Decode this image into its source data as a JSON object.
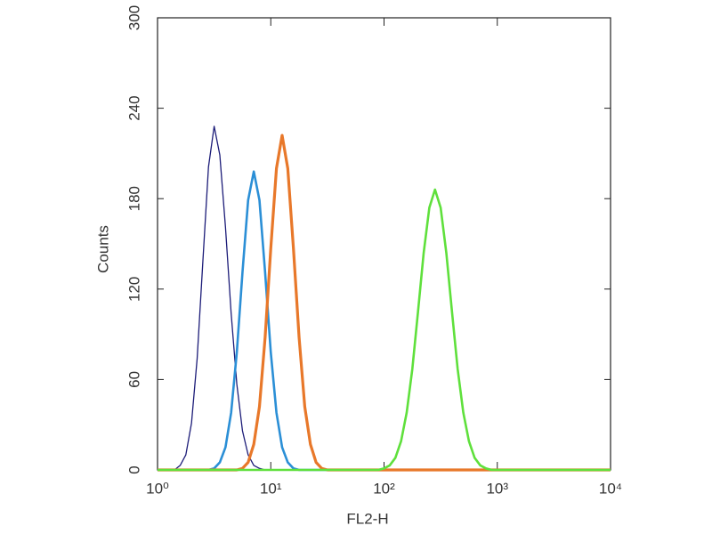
{
  "chart_data": {
    "type": "line",
    "x_label": "FL2-H",
    "y_label": "Counts",
    "xscale": "log",
    "xlim": [
      1,
      10000
    ],
    "xticks": [
      {
        "value": 1,
        "label": "10⁰"
      },
      {
        "value": 10,
        "label": "10¹"
      },
      {
        "value": 100,
        "label": "10²"
      },
      {
        "value": 1000,
        "label": "10³"
      },
      {
        "value": 10000,
        "label": "10⁴"
      }
    ],
    "ylim": [
      0,
      300
    ],
    "yticks": [
      0,
      60,
      120,
      180,
      240,
      300
    ],
    "x": [
      1,
      1.122,
      1.259,
      1.413,
      1.585,
      1.778,
      1.995,
      2.239,
      2.512,
      2.818,
      3.162,
      3.548,
      3.981,
      4.467,
      5.012,
      5.623,
      6.31,
      7.079,
      7.943,
      8.913,
      10,
      11.22,
      12.59,
      14.13,
      15.85,
      17.78,
      19.95,
      22.39,
      25.12,
      28.18,
      31.62,
      35.48,
      39.81,
      44.67,
      50.12,
      56.23,
      63.1,
      70.79,
      79.43,
      89.13,
      100,
      112.2,
      125.9,
      141.3,
      158.5,
      177.8,
      199.5,
      223.9,
      251.2,
      281.8,
      316.2,
      354.8,
      398.1,
      446.7,
      501.2,
      562.3,
      631,
      707.9,
      794.3,
      891.3,
      1000,
      1122,
      1259,
      1413,
      1585,
      1778,
      1995,
      2239,
      2512,
      2818,
      3162,
      3548,
      3981,
      4467,
      5012,
      5623,
      6310,
      7079,
      7943,
      8913,
      10000
    ],
    "series": [
      {
        "color": "#1c1c78",
        "width": 1.3,
        "values": [
          0,
          0,
          0,
          0,
          3,
          10,
          31,
          74,
          138,
          201,
          228,
          209,
          161,
          104,
          57,
          26,
          10,
          3,
          1,
          0,
          0,
          0,
          0,
          0,
          0,
          0,
          0,
          0,
          0,
          0,
          0,
          0,
          0,
          0,
          0,
          0,
          0,
          0,
          0,
          0,
          0,
          0,
          0,
          0,
          0,
          0,
          0,
          0,
          0,
          0,
          0,
          0,
          0,
          0,
          0,
          0,
          0,
          0,
          0,
          0,
          0,
          0,
          0,
          0,
          0,
          0,
          0,
          0,
          0,
          0,
          0,
          0,
          0,
          0,
          0,
          0,
          0,
          0,
          0,
          0,
          0
        ]
      },
      {
        "color": "#2b8fd6",
        "width": 2.6,
        "values": [
          0,
          0,
          0,
          0,
          0,
          0,
          0,
          0,
          0,
          0,
          1,
          5,
          15,
          38,
          78,
          131,
          179,
          198,
          179,
          131,
          78,
          38,
          15,
          5,
          1,
          0,
          0,
          0,
          0,
          0,
          0,
          0,
          0,
          0,
          0,
          0,
          0,
          0,
          0,
          0,
          0,
          0,
          0,
          0,
          0,
          0,
          0,
          0,
          0,
          0,
          0,
          0,
          0,
          0,
          0,
          0,
          0,
          0,
          0,
          0,
          0,
          0,
          0,
          0,
          0,
          0,
          0,
          0,
          0,
          0,
          0,
          0,
          0,
          0,
          0,
          0,
          0,
          0,
          0,
          0,
          0
        ]
      },
      {
        "color": "#e8782a",
        "width": 3.2,
        "values": [
          0,
          0,
          0,
          0,
          0,
          0,
          0,
          0,
          0,
          0,
          0,
          0,
          0,
          0,
          0,
          1,
          5,
          17,
          42,
          88,
          147,
          200,
          222,
          200,
          147,
          88,
          42,
          17,
          5,
          1,
          0,
          0,
          0,
          0,
          0,
          0,
          0,
          0,
          0,
          0,
          0,
          0,
          0,
          0,
          0,
          0,
          0,
          0,
          0,
          0,
          0,
          0,
          0,
          0,
          0,
          0,
          0,
          0,
          0,
          0,
          0,
          0,
          0,
          0,
          0,
          0,
          0,
          0,
          0,
          0,
          0,
          0,
          0,
          0,
          0,
          0,
          0,
          0,
          0,
          0,
          0
        ]
      },
      {
        "color": "#5fe03c",
        "width": 2.6,
        "values": [
          0,
          0,
          0,
          0,
          0,
          0,
          0,
          0,
          0,
          0,
          0,
          0,
          0,
          0,
          0,
          0,
          0,
          0,
          0,
          0,
          0,
          0,
          0,
          0,
          0,
          0,
          0,
          0,
          0,
          0,
          0,
          0,
          0,
          0,
          0,
          0,
          0,
          0,
          0,
          0,
          1,
          3,
          8,
          19,
          38,
          67,
          105,
          144,
          174,
          186,
          174,
          144,
          105,
          67,
          38,
          19,
          8,
          3,
          1,
          0,
          0,
          0,
          0,
          0,
          0,
          0,
          0,
          0,
          0,
          0,
          0,
          0,
          0,
          0,
          0,
          0,
          0,
          0,
          0,
          0,
          0
        ]
      }
    ]
  }
}
